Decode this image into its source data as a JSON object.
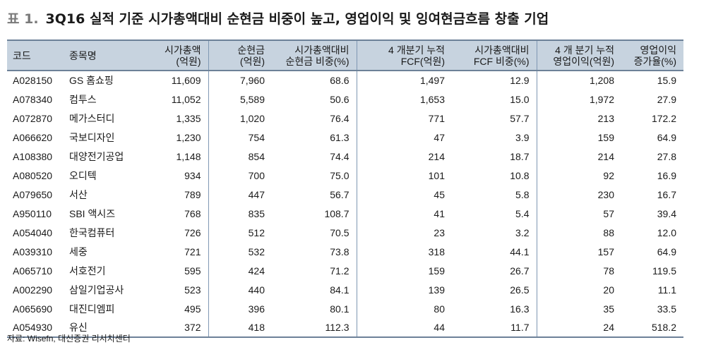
{
  "title": {
    "label": "표 1.",
    "text": "3Q16 실적 기준 시가총액대비 순현금 비중이 높고, 영업이익 및 잉여현금흐름 창출 기업"
  },
  "table": {
    "headers": [
      [
        "코드"
      ],
      [
        "종목명"
      ],
      [
        "시가총액",
        "(억원)"
      ],
      [
        "순현금",
        "(억원)"
      ],
      [
        "시가총액대비",
        "순현금 비중(%)"
      ],
      [
        "4 개분기 누적",
        "FCF(억원)"
      ],
      [
        "시가총액대비",
        "FCF 비중(%)"
      ],
      [
        "4 개 분기 누적",
        "영업이익(억원)"
      ],
      [
        "영업이익",
        "증가율(%)"
      ]
    ],
    "rows": [
      [
        "A028150",
        "GS 홈쇼핑",
        "11,609",
        "7,960",
        "68.6",
        "1,497",
        "12.9",
        "1,208",
        "15.9"
      ],
      [
        "A078340",
        "컴투스",
        "11,052",
        "5,589",
        "50.6",
        "1,653",
        "15.0",
        "1,972",
        "27.9"
      ],
      [
        "A072870",
        "메가스터디",
        "1,335",
        "1,020",
        "76.4",
        "771",
        "57.7",
        "213",
        "172.2"
      ],
      [
        "A066620",
        "국보디자인",
        "1,230",
        "754",
        "61.3",
        "47",
        "3.9",
        "159",
        "64.9"
      ],
      [
        "A108380",
        "대양전기공업",
        "1,148",
        "854",
        "74.4",
        "214",
        "18.7",
        "214",
        "27.8"
      ],
      [
        "A080520",
        "오디텍",
        "934",
        "700",
        "75.0",
        "101",
        "10.8",
        "92",
        "16.9"
      ],
      [
        "A079650",
        "서산",
        "789",
        "447",
        "56.7",
        "45",
        "5.8",
        "230",
        "16.7"
      ],
      [
        "A950110",
        "SBI 액시즈",
        "768",
        "835",
        "108.7",
        "41",
        "5.4",
        "57",
        "39.4"
      ],
      [
        "A054040",
        "한국컴퓨터",
        "726",
        "512",
        "70.5",
        "23",
        "3.2",
        "88",
        "12.0"
      ],
      [
        "A039310",
        "세중",
        "721",
        "532",
        "73.8",
        "318",
        "44.1",
        "157",
        "64.9"
      ],
      [
        "A065710",
        "서호전기",
        "595",
        "424",
        "71.2",
        "159",
        "26.7",
        "78",
        "119.5"
      ],
      [
        "A002290",
        "삼일기업공사",
        "523",
        "440",
        "84.1",
        "139",
        "26.5",
        "20",
        "11.1"
      ],
      [
        "A065690",
        "대진디엠피",
        "495",
        "396",
        "80.1",
        "80",
        "16.3",
        "35",
        "33.5"
      ],
      [
        "A054930",
        "유신",
        "372",
        "418",
        "112.3",
        "44",
        "11.7",
        "24",
        "518.2"
      ]
    ]
  },
  "source": "자료: Wisefn, 대신증권 리서치센터"
}
